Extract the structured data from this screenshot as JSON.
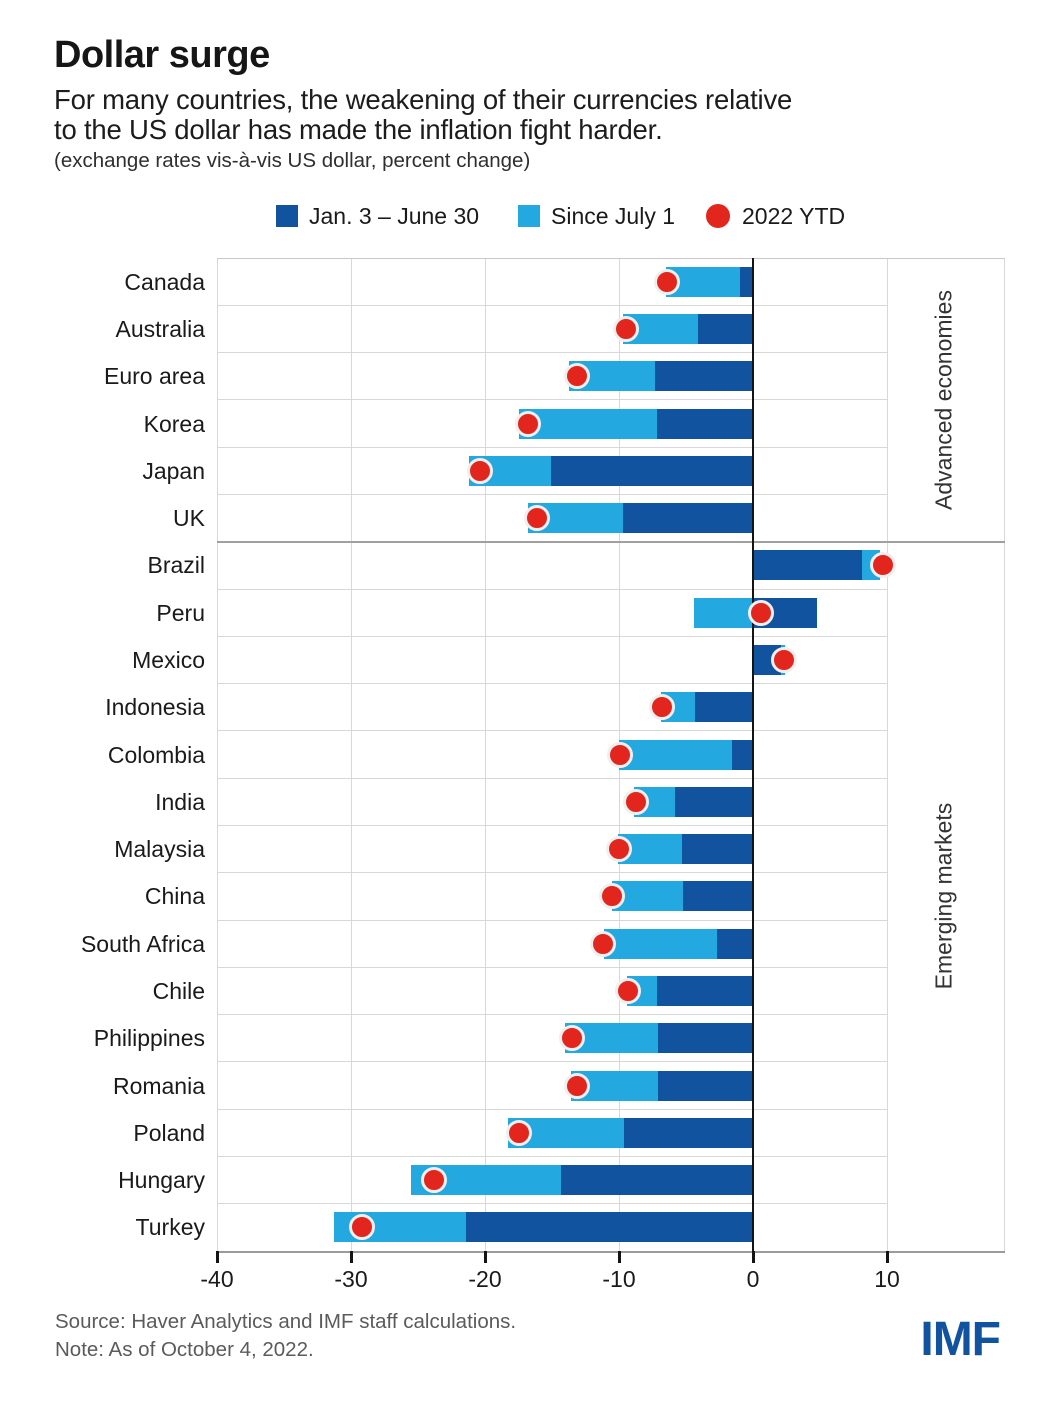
{
  "header": {
    "title": "Dollar surge",
    "subtitle_line1": "For many countries, the weakening of their currencies relative",
    "subtitle_line2": "to the US dollar has made the inflation fight harder.",
    "caption": "(exchange rates vis-à-vis US dollar, percent change)"
  },
  "legend": {
    "items": [
      {
        "label": "Jan. 3 – June 30",
        "shape": "square",
        "color_key": "dark_blue"
      },
      {
        "label": "Since July 1",
        "shape": "square",
        "color_key": "light_blue"
      },
      {
        "label": "2022 YTD",
        "shape": "circle",
        "color_key": "red"
      }
    ]
  },
  "colors": {
    "dark_blue": "#1253a0",
    "light_blue": "#23a8e0",
    "red": "#e2261d",
    "zero_line": "#141414",
    "gridline": "#d8d8d8",
    "separator": "#a0a0a0",
    "axis_line": "#9b9b9b",
    "logo_blue": "#1253a0"
  },
  "chart_data": {
    "type": "bar",
    "orientation": "horizontal",
    "stacked": true,
    "title": "Dollar surge",
    "xlabel": "exchange rates vis-à-vis US dollar, percent change",
    "xlim": [
      -40,
      18.7
    ],
    "xticks": [
      "-40",
      "-30",
      "-20",
      "-10",
      "0",
      "10"
    ],
    "xtick_values": [
      -40,
      -30,
      -20,
      -10,
      0,
      10
    ],
    "series_names": [
      "Jan. 3 – June 30",
      "Since July 1",
      "2022 YTD"
    ],
    "groups": [
      {
        "name": "Advanced economies",
        "rows": [
          {
            "country": "Canada",
            "jan_june": -1.0,
            "since_july": -5.5,
            "ytd": -6.4
          },
          {
            "country": "Australia",
            "jan_june": -4.1,
            "since_july": -5.6,
            "ytd": -9.5
          },
          {
            "country": "Euro area",
            "jan_june": -7.3,
            "since_july": -6.4,
            "ytd": -13.1
          },
          {
            "country": "Korea",
            "jan_june": -7.2,
            "since_july": -10.3,
            "ytd": -16.8
          },
          {
            "country": "Japan",
            "jan_june": -15.1,
            "since_july": -6.1,
            "ytd": -20.4
          },
          {
            "country": "UK",
            "jan_june": -9.7,
            "since_july": -7.1,
            "ytd": -16.1
          }
        ]
      },
      {
        "name": "Emerging markets",
        "rows": [
          {
            "country": "Brazil",
            "jan_june": 8.1,
            "since_july": 1.4,
            "ytd": 9.7
          },
          {
            "country": "Peru",
            "jan_june": 4.8,
            "since_july": -4.4,
            "ytd": 0.6
          },
          {
            "country": "Mexico",
            "jan_june": 2.1,
            "since_july": 0.3,
            "ytd": 2.3
          },
          {
            "country": "Indonesia",
            "jan_june": -4.3,
            "since_july": -2.6,
            "ytd": -6.8
          },
          {
            "country": "Colombia",
            "jan_june": -1.6,
            "since_july": -8.4,
            "ytd": -9.9
          },
          {
            "country": "India",
            "jan_june": -5.8,
            "since_july": -3.1,
            "ytd": -8.7
          },
          {
            "country": "Malaysia",
            "jan_june": -5.3,
            "since_july": -4.8,
            "ytd": -10.0
          },
          {
            "country": "China",
            "jan_june": -5.2,
            "since_july": -5.3,
            "ytd": -10.5
          },
          {
            "country": "South Africa",
            "jan_june": -2.7,
            "since_july": -8.4,
            "ytd": -11.2
          },
          {
            "country": "Chile",
            "jan_june": -7.2,
            "since_july": -2.2,
            "ytd": -9.3
          },
          {
            "country": "Philippines",
            "jan_june": -7.1,
            "since_july": -6.9,
            "ytd": -13.5
          },
          {
            "country": "Romania",
            "jan_june": -7.1,
            "since_july": -6.5,
            "ytd": -13.1
          },
          {
            "country": "Poland",
            "jan_june": -9.6,
            "since_july": -8.7,
            "ytd": -17.5
          },
          {
            "country": "Hungary",
            "jan_june": -14.3,
            "since_july": -11.2,
            "ytd": -23.8
          },
          {
            "country": "Turkey",
            "jan_june": -21.4,
            "since_july": -9.9,
            "ytd": -29.2
          }
        ]
      }
    ]
  },
  "footer": {
    "source": "Source: Haver Analytics and IMF staff calculations.",
    "note": "Note: As of October 4, 2022.",
    "logo": "IMF"
  }
}
